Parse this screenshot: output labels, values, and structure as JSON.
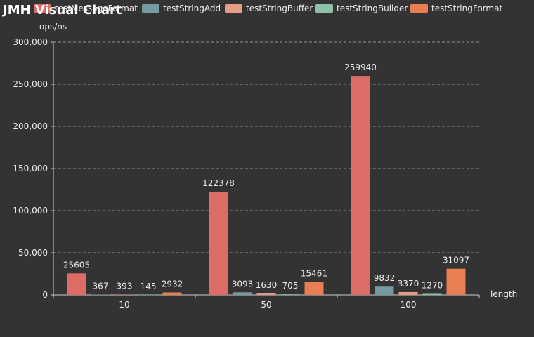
{
  "title": "JMH Visual Chart",
  "colors": {
    "background": "#333333",
    "text": "#eeeeee",
    "axis": "#cccccc",
    "grid": "#aaaaaa"
  },
  "chart_data": {
    "type": "bar",
    "title": "JMH Visual Chart",
    "xlabel": "length",
    "ylabel": "ops/ns",
    "categories": [
      "10",
      "50",
      "100"
    ],
    "ylim": [
      0,
      300000
    ],
    "yticks": [
      0,
      50000,
      100000,
      150000,
      200000,
      250000,
      300000
    ],
    "ytick_labels": [
      "0",
      "50,000",
      "100,000",
      "150,000",
      "200,000",
      "250,000",
      "300,000"
    ],
    "grid": true,
    "grid_style": "dashed",
    "legend": "top",
    "series": [
      {
        "name": "testMessageFormat",
        "color": "#dd6b66",
        "values": [
          25605,
          122378,
          259940
        ]
      },
      {
        "name": "testStringAdd",
        "color": "#759aa0",
        "values": [
          367,
          3093,
          9832
        ]
      },
      {
        "name": "testStringBuffer",
        "color": "#e69d87",
        "values": [
          393,
          1630,
          3370
        ]
      },
      {
        "name": "testStringBuilder",
        "color": "#8dc1a9",
        "values": [
          145,
          705,
          1270
        ]
      },
      {
        "name": "testStringFormat",
        "color": "#ea7e53",
        "values": [
          2932,
          15461,
          31097
        ]
      }
    ]
  }
}
